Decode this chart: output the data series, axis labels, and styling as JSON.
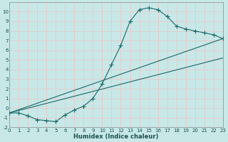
{
  "xlabel": "Humidex (Indice chaleur)",
  "ylabel": "",
  "background_color": "#c8e8e8",
  "grid_color": "#e8c8c8",
  "line_color": "#1a6868",
  "xlim": [
    0,
    23
  ],
  "ylim": [
    -2,
    11
  ],
  "xticks": [
    0,
    1,
    2,
    3,
    4,
    5,
    6,
    7,
    8,
    9,
    10,
    11,
    12,
    13,
    14,
    15,
    16,
    17,
    18,
    19,
    20,
    21,
    22,
    23
  ],
  "yticks": [
    -2,
    -1,
    0,
    1,
    2,
    3,
    4,
    5,
    6,
    7,
    8,
    9,
    10
  ],
  "curve1_x": [
    0,
    1,
    2,
    3,
    4,
    5,
    6,
    7,
    8,
    9,
    10,
    11,
    12,
    13,
    14,
    15,
    16,
    17,
    18,
    19,
    20,
    21,
    22,
    23
  ],
  "curve1_y": [
    -0.5,
    -0.5,
    -0.8,
    -1.2,
    -1.3,
    -1.4,
    -0.7,
    -0.2,
    0.2,
    1.0,
    2.5,
    4.5,
    6.5,
    9.0,
    10.2,
    10.4,
    10.2,
    9.5,
    8.5,
    8.2,
    8.0,
    7.8,
    7.6,
    7.2
  ],
  "line1_x": [
    0,
    23
  ],
  "line1_y": [
    -0.5,
    7.2
  ],
  "line2_x": [
    0,
    23
  ],
  "line2_y": [
    -0.5,
    5.2
  ],
  "marker": "+",
  "markersize": 4
}
